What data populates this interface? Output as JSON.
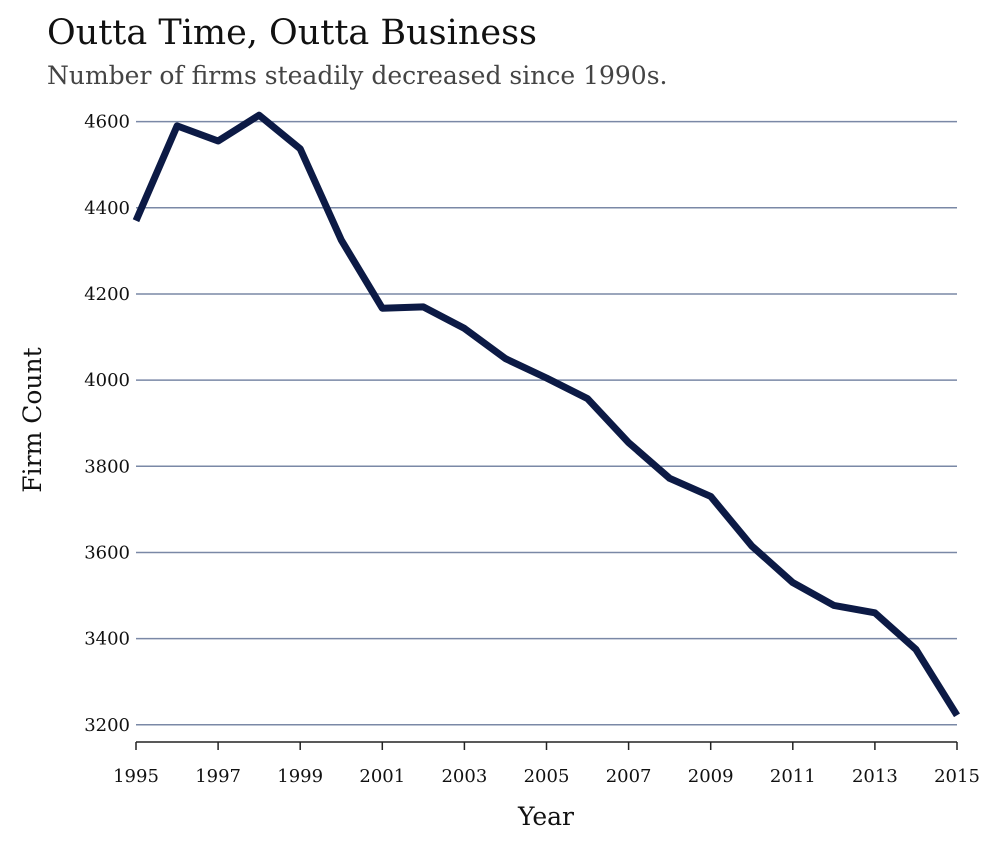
{
  "chart_data": {
    "type": "line",
    "title": "Outta Time, Outta Business",
    "subtitle": "Number of firms steadily decreased since 1990s.",
    "xlabel": "Year",
    "ylabel": "Firm Count",
    "xlim": [
      1995,
      2015
    ],
    "ylim": [
      3160,
      4620
    ],
    "xticks": [
      "1995",
      "1997",
      "1999",
      "2001",
      "2003",
      "2005",
      "2007",
      "2009",
      "2011",
      "2013",
      "2015"
    ],
    "yticks": [
      "3200",
      "3400",
      "3600",
      "3800",
      "4000",
      "4200",
      "4400",
      "4600"
    ],
    "grid": "horizontal",
    "colors": {
      "line": "#0c1a45",
      "grid": "#7a88a6",
      "axis": "#222222"
    },
    "series": [
      {
        "x": [
          1995,
          1996,
          1997,
          1998,
          1999,
          2000,
          2001,
          2002,
          2003,
          2004,
          2005,
          2006,
          2007,
          2008,
          2009,
          2010,
          2011,
          2012,
          2013,
          2014,
          2015
        ],
        "values": [
          4370,
          4590,
          4555,
          4615,
          4537,
          4325,
          4167,
          4170,
          4120,
          4050,
          4005,
          3957,
          3855,
          3772,
          3730,
          3615,
          3530,
          3477,
          3460,
          3375,
          3222
        ]
      }
    ]
  }
}
